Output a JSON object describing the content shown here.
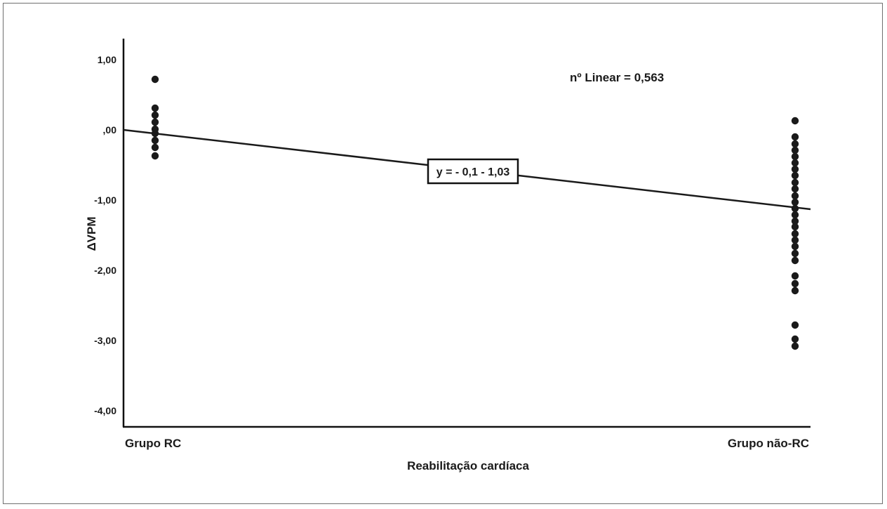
{
  "chart_data": {
    "type": "scatter",
    "title": "",
    "xlabel": "Reabilitação cardíaca",
    "ylabel": "ΔVPM",
    "categories": [
      "Grupo RC",
      "Grupo não-RC"
    ],
    "ylim": [
      -4.3,
      1.3
    ],
    "yticks": [
      {
        "value": 1.0,
        "label": "1,00"
      },
      {
        "value": 0.0,
        "label": ",00"
      },
      {
        "value": -1.0,
        "label": "-1,00"
      },
      {
        "value": -2.0,
        "label": "-2,00"
      },
      {
        "value": -3.0,
        "label": "-3,00"
      },
      {
        "value": -4.0,
        "label": "-4,00"
      }
    ],
    "grid": false,
    "series": [
      {
        "category": "Grupo RC",
        "values": [
          0.72,
          0.31,
          0.21,
          0.11,
          0.01,
          -0.05,
          -0.15,
          -0.25,
          -0.37
        ]
      },
      {
        "category": "Grupo não-RC",
        "values": [
          0.13,
          -0.1,
          -0.2,
          -0.29,
          -0.38,
          -0.47,
          -0.56,
          -0.65,
          -0.75,
          -0.84,
          -0.94,
          -1.03,
          -1.12,
          -1.21,
          -1.3,
          -1.38,
          -1.48,
          -1.57,
          -1.66,
          -1.76,
          -1.86,
          -2.08,
          -2.19,
          -2.29,
          -2.78,
          -2.98,
          -3.08
        ]
      }
    ],
    "fit_line": {
      "y_start": 0.0,
      "y_end": -1.13
    },
    "annotations": {
      "r_squared": "nº Linear = 0,563",
      "equation": "y = - 0,1 - 1,03"
    }
  },
  "colors": {
    "axis": "#111111",
    "points": "#1a1a1a",
    "line": "#1a1a1a",
    "frame": "#6f6f6f"
  }
}
